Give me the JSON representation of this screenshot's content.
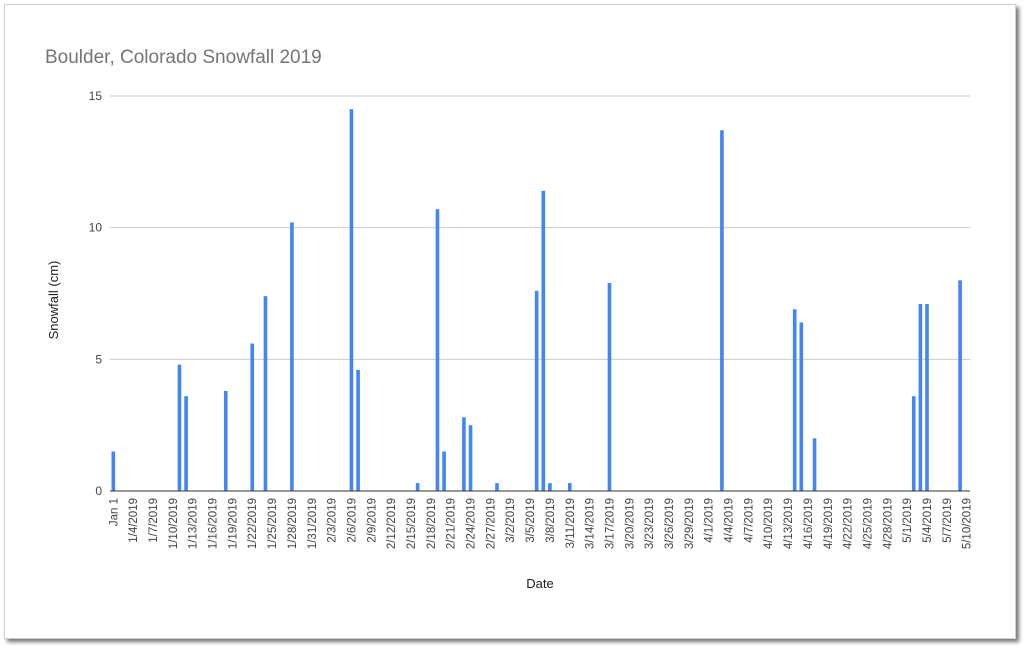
{
  "chart_data": {
    "type": "bar",
    "title": "Boulder, Colorado Snowfall 2019",
    "xlabel": "Date",
    "ylabel": "Snowfall (cm)",
    "ylim": [
      0,
      15
    ],
    "yticks": [
      "0",
      "5",
      "10",
      "15"
    ],
    "grid": true,
    "legend": "none",
    "bar_color": "#4285f4",
    "x_start": "2019-01-01",
    "x_end": "2019-05-10",
    "x_tick_labels": [
      "Jan 1",
      "1/4/2019",
      "1/7/2019",
      "1/10/2019",
      "1/13/2019",
      "1/16/2019",
      "1/19/2019",
      "1/22/2019",
      "1/25/2019",
      "1/28/2019",
      "1/31/2019",
      "2/3/2019",
      "2/6/2019",
      "2/9/2019",
      "2/12/2019",
      "2/15/2019",
      "2/18/2019",
      "2/21/2019",
      "2/24/2019",
      "2/27/2019",
      "3/2/2019",
      "3/5/2019",
      "3/8/2019",
      "3/11/2019",
      "3/14/2019",
      "3/17/2019",
      "3/20/2019",
      "3/23/2019",
      "3/26/2019",
      "3/29/2019",
      "4/1/2019",
      "4/4/2019",
      "4/7/2019",
      "4/10/2019",
      "4/13/2019",
      "4/16/2019",
      "4/19/2019",
      "4/22/2019",
      "4/25/2019",
      "4/28/2019",
      "5/1/2019",
      "5/4/2019",
      "5/7/2019",
      "5/10/2019"
    ],
    "x": [
      "2019-01-01",
      "2019-01-11",
      "2019-01-12",
      "2019-01-18",
      "2019-01-22",
      "2019-01-24",
      "2019-01-28",
      "2019-02-06",
      "2019-02-07",
      "2019-02-16",
      "2019-02-19",
      "2019-02-20",
      "2019-02-23",
      "2019-02-24",
      "2019-02-28",
      "2019-03-06",
      "2019-03-07",
      "2019-03-08",
      "2019-03-11",
      "2019-03-17",
      "2019-04-03",
      "2019-04-14",
      "2019-04-15",
      "2019-04-17",
      "2019-05-02",
      "2019-05-03",
      "2019-05-04",
      "2019-05-09"
    ],
    "values": [
      1.5,
      4.8,
      3.6,
      3.8,
      5.6,
      7.4,
      10.2,
      14.5,
      4.6,
      0.3,
      10.7,
      1.5,
      2.8,
      2.5,
      0.3,
      7.6,
      11.4,
      0.3,
      0.3,
      7.9,
      13.7,
      6.9,
      6.4,
      2.0,
      3.6,
      7.1,
      7.1,
      8.0
    ]
  }
}
